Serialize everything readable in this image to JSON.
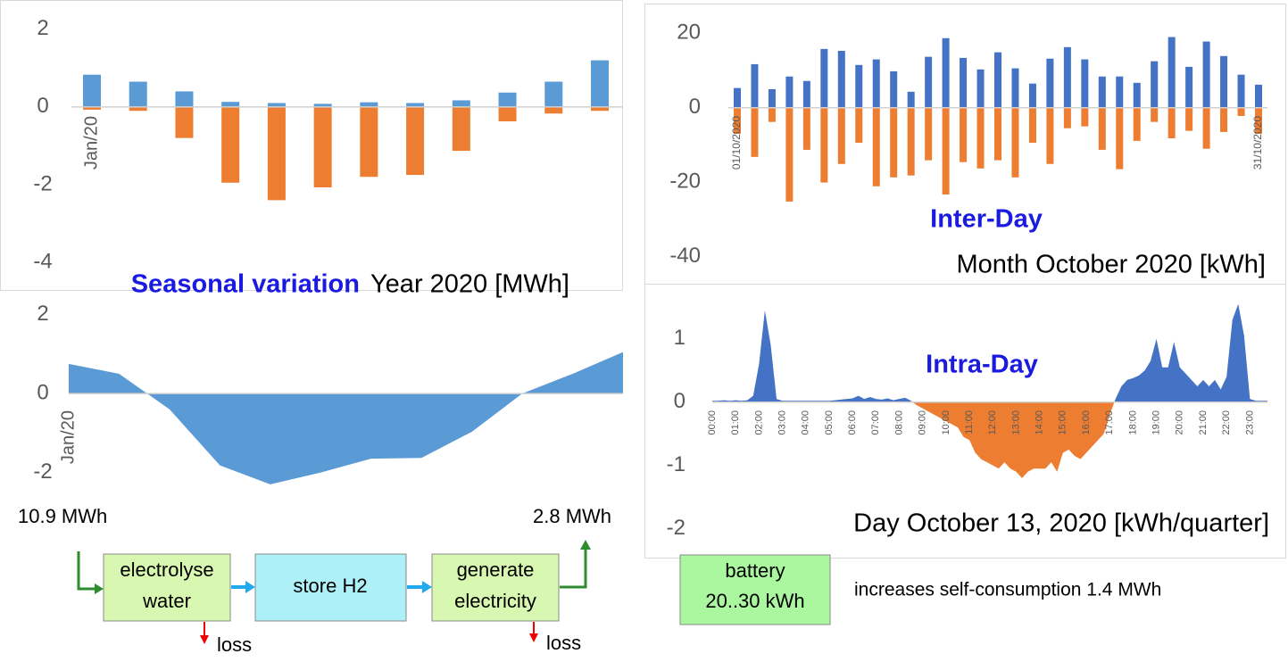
{
  "chart_data": [
    {
      "type": "bar",
      "title": "Seasonal variation",
      "subtitle": "Year 2020 [MWh]",
      "categories": [
        "Jan/20",
        null,
        null,
        null,
        null,
        null,
        null,
        null,
        null,
        null,
        null,
        null
      ],
      "series": [
        {
          "color": "#5b9bd5",
          "values": [
            0.83,
            0.65,
            0.4,
            0.13,
            0.1,
            0.08,
            0.12,
            0.1,
            0.17,
            0.37,
            0.65,
            1.2
          ]
        },
        {
          "color": "#ed7d31",
          "values": [
            -0.07,
            -0.1,
            -0.8,
            -1.95,
            -2.4,
            -2.07,
            -1.8,
            -1.75,
            -1.13,
            -0.37,
            -0.17,
            -0.1
          ]
        }
      ],
      "ylim": [
        -4.7,
        2.5
      ],
      "yticks": [
        2,
        0,
        -2,
        -4
      ]
    },
    {
      "type": "area",
      "categories": [
        "Jan/20",
        null,
        null,
        null,
        null,
        null,
        null,
        null,
        null,
        null,
        null,
        null
      ],
      "values": [
        0.75,
        0.5,
        -0.4,
        -1.82,
        -2.3,
        -2.0,
        -1.65,
        -1.63,
        -0.97,
        0.0,
        0.5,
        1.05
      ],
      "color": "#5b9bd5",
      "ylim": [
        -2.8,
        2.6
      ],
      "yticks": [
        2,
        0,
        -2
      ]
    },
    {
      "type": "bar",
      "title": "Inter-Day",
      "subtitle": "Month October 2020 [kWh]",
      "categories": [
        "01/10/2020",
        null,
        null,
        null,
        null,
        null,
        null,
        null,
        null,
        null,
        null,
        null,
        null,
        null,
        null,
        null,
        null,
        null,
        null,
        null,
        null,
        null,
        null,
        null,
        null,
        null,
        null,
        null,
        null,
        null,
        "31/10/2020"
      ],
      "series": [
        {
          "color": "#4472c4",
          "values": [
            5.3,
            11.7,
            5,
            8.4,
            7.2,
            15.8,
            15.3,
            11.5,
            13,
            9.8,
            4.3,
            13.7,
            18.7,
            13.4,
            10.3,
            14.9,
            10.6,
            6.5,
            13.2,
            16.3,
            13,
            8.4,
            8.4,
            6.7,
            12.5,
            19,
            11,
            17.8,
            13.9,
            8.9,
            6.2
          ]
        },
        {
          "color": "#ed7d31",
          "values": [
            -7,
            -13.2,
            -3.8,
            -25.2,
            -11.3,
            -20.1,
            -15.1,
            -9.4,
            -21.1,
            -18.7,
            -18.2,
            -14.1,
            -23.3,
            -14.6,
            -16.3,
            -14.1,
            -18.7,
            -9.4,
            -15.1,
            -5.5,
            -5,
            -11.3,
            -16.5,
            -8.9,
            -3.8,
            -8.2,
            -6.2,
            -11,
            -6.5,
            -2.2,
            -7
          ]
        }
      ],
      "ylim": [
        -48,
        28
      ],
      "yticks": [
        20,
        0,
        -20,
        -40
      ]
    },
    {
      "type": "area",
      "title": "Intra-Day",
      "subtitle": "Day October 13, 2020 [kWh/quarter]",
      "categories": [
        "00:00",
        null,
        null,
        null,
        "01:00",
        null,
        null,
        null,
        "02:00",
        null,
        null,
        null,
        "03:00",
        null,
        null,
        null,
        "04:00",
        null,
        null,
        null,
        "05:00",
        null,
        null,
        null,
        "06:00",
        null,
        null,
        null,
        "07:00",
        null,
        null,
        null,
        "08:00",
        null,
        null,
        null,
        "09:00",
        null,
        null,
        null,
        "10:00",
        null,
        null,
        null,
        "11:00",
        null,
        null,
        null,
        "12:00",
        null,
        null,
        null,
        "13:00",
        null,
        null,
        null,
        "14:00",
        null,
        null,
        null,
        "15:00",
        null,
        null,
        null,
        "16:00",
        null,
        null,
        null,
        "17:00",
        null,
        null,
        null,
        "18:00",
        null,
        null,
        null,
        "19:00",
        null,
        null,
        null,
        "20:00",
        null,
        null,
        null,
        "21:00",
        null,
        null,
        null,
        "22:00",
        null,
        null,
        null,
        "23:00",
        null,
        null,
        null
      ],
      "values": [
        0.02,
        0.02,
        0.03,
        0.02,
        0.03,
        0.02,
        0.03,
        0.1,
        0.6,
        1.45,
        0.9,
        0.05,
        0.02,
        0.02,
        0.02,
        0.02,
        0.02,
        0.02,
        0.02,
        0.02,
        0.02,
        0.03,
        0.04,
        0.05,
        0.06,
        0.1,
        0.05,
        0.08,
        0.05,
        0.04,
        0.06,
        0.03,
        0.05,
        0.07,
        0.02,
        -0.05,
        -0.1,
        -0.15,
        -0.2,
        -0.25,
        -0.3,
        -0.35,
        -0.4,
        -0.55,
        -0.6,
        -0.8,
        -0.9,
        -0.95,
        -1.0,
        -1.05,
        -0.95,
        -1.05,
        -1.1,
        -1.2,
        -1.1,
        -1.05,
        -1.05,
        -1.05,
        -0.95,
        -1.1,
        -0.8,
        -0.75,
        -0.85,
        -0.9,
        -0.8,
        -0.7,
        -0.6,
        -0.5,
        -0.2,
        0.05,
        0.25,
        0.35,
        0.38,
        0.42,
        0.5,
        0.65,
        1.0,
        0.55,
        0.55,
        0.95,
        0.55,
        0.45,
        0.35,
        0.25,
        0.35,
        0.25,
        0.35,
        0.2,
        0.4,
        1.3,
        1.55,
        1.05,
        0.05,
        0.02,
        0.02,
        0.02
      ],
      "color": "#4472c4",
      "negative_color": "#ed7d31",
      "ylim": [
        -2.4,
        1.8
      ],
      "yticks": [
        1,
        0,
        -1,
        -2
      ]
    }
  ],
  "diagram": {
    "input": "10.9 MWh",
    "output": "2.8 MWh",
    "steps": [
      {
        "lines": [
          "electrolyse",
          "water"
        ]
      },
      {
        "lines": [
          "store H2"
        ]
      },
      {
        "lines": [
          "generate",
          "electricity"
        ]
      }
    ],
    "losses": [
      "loss",
      "loss"
    ],
    "battery": {
      "lines": [
        "battery",
        "20..30 kWh"
      ]
    },
    "note": "increases self-consumption 1.4 MWh"
  }
}
